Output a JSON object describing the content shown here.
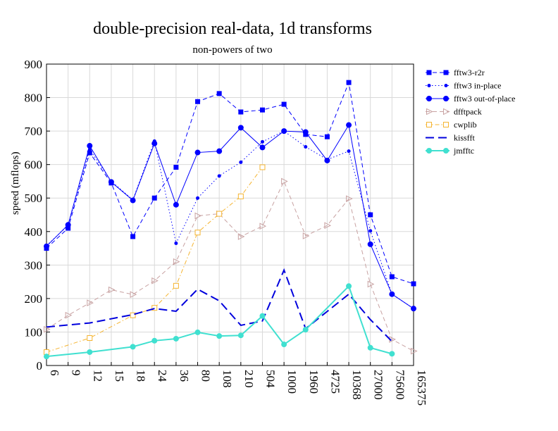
{
  "chart_data": {
    "type": "line",
    "title": "double-precision real-data, 1d transforms",
    "subtitle": "non-powers of two",
    "ylabel": "speed (mflops)",
    "xlabel": "",
    "ylim": [
      0,
      900
    ],
    "yticks": [
      0,
      100,
      200,
      300,
      400,
      500,
      600,
      700,
      800,
      900
    ],
    "grid": true,
    "legend": "right",
    "categories": [
      "6",
      "9",
      "12",
      "15",
      "18",
      "24",
      "36",
      "80",
      "108",
      "210",
      "504",
      "1000",
      "1960",
      "4725",
      "10368",
      "27000",
      "75600",
      "165375"
    ],
    "series": [
      {
        "name": "fftw3-r2r",
        "color": "#0000ff",
        "dash": "6,4",
        "marker": "square",
        "values": [
          350,
          410,
          635,
          545,
          385,
          500,
          592,
          788,
          812,
          757,
          763,
          780,
          690,
          683,
          845,
          450,
          265,
          244
        ]
      },
      {
        "name": "fftw3 in-place",
        "color": "#0000ff",
        "dash": "1.5,3",
        "marker": "dot",
        "values": [
          358,
          418,
          645,
          550,
          495,
          670,
          365,
          500,
          566,
          607,
          668,
          700,
          653,
          615,
          640,
          402,
          213,
          170
        ]
      },
      {
        "name": "fftw3 out-of-place",
        "color": "#0000ff",
        "dash": "",
        "marker": "circle",
        "values": [
          356,
          420,
          656,
          548,
          493,
          663,
          480,
          636,
          640,
          710,
          651,
          700,
          697,
          612,
          718,
          362,
          213,
          170
        ]
      },
      {
        "name": "dfftpack",
        "color": "#c8a2a2",
        "dash": "6,4",
        "marker": "triangle",
        "values": [
          108,
          150,
          187,
          226,
          212,
          253,
          310,
          447,
          453,
          385,
          416,
          550,
          387,
          418,
          498,
          243,
          78,
          43
        ]
      },
      {
        "name": "cwplib",
        "color": "#f5b430",
        "dash": "6,3,1.5,3",
        "marker": "opensquare",
        "values": [
          40,
          null,
          82,
          null,
          150,
          172,
          238,
          397,
          453,
          505,
          592,
          null,
          null,
          null,
          null,
          null,
          null,
          null
        ]
      },
      {
        "name": "kissfft",
        "color": "#0000dd",
        "dash": "12,6",
        "marker": "none",
        "values": [
          115,
          null,
          127,
          null,
          152,
          170,
          162,
          228,
          193,
          120,
          133,
          285,
          110,
          null,
          213,
          137,
          72,
          null
        ]
      },
      {
        "name": "jmfftc",
        "color": "#40e0d0",
        "dash": "",
        "marker": "circle",
        "values": [
          27,
          null,
          40,
          null,
          56,
          74,
          80,
          99,
          88,
          90,
          148,
          63,
          107,
          null,
          237,
          53,
          35,
          null
        ]
      }
    ]
  }
}
